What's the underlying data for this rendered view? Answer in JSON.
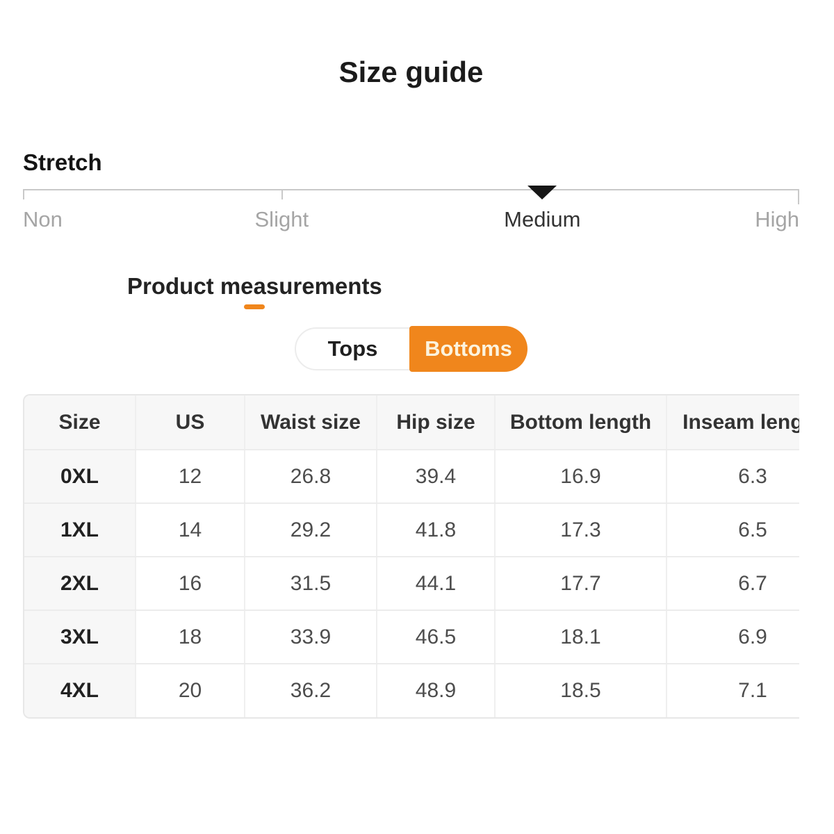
{
  "title": "Size guide",
  "stretch": {
    "label": "Stretch",
    "selected": "Medium",
    "options": [
      {
        "label": "Non"
      },
      {
        "label": "Slight"
      },
      {
        "label": "Medium"
      },
      {
        "label": "High"
      }
    ]
  },
  "measurements": {
    "heading": "Product measurements",
    "tabs": [
      {
        "label": "Tops",
        "selected": false
      },
      {
        "label": "Bottoms",
        "selected": true
      }
    ]
  },
  "table": {
    "columns": [
      "Size",
      "US",
      "Waist size",
      "Hip size",
      "Bottom length",
      "Inseam length"
    ],
    "rows": [
      [
        "0XL",
        "12",
        "26.8",
        "39.4",
        "16.9",
        "6.3"
      ],
      [
        "1XL",
        "14",
        "29.2",
        "41.8",
        "17.3",
        "6.5"
      ],
      [
        "2XL",
        "16",
        "31.5",
        "44.1",
        "17.7",
        "6.7"
      ],
      [
        "3XL",
        "18",
        "33.9",
        "46.5",
        "18.1",
        "6.9"
      ],
      [
        "4XL",
        "20",
        "36.2",
        "48.9",
        "18.5",
        "7.1"
      ]
    ]
  },
  "colors": {
    "accent": "#F0861C",
    "selected_tab_text": "#FCF3DD",
    "track_gray": "#C9C9C9",
    "muted_label": "#A5A5A5"
  }
}
